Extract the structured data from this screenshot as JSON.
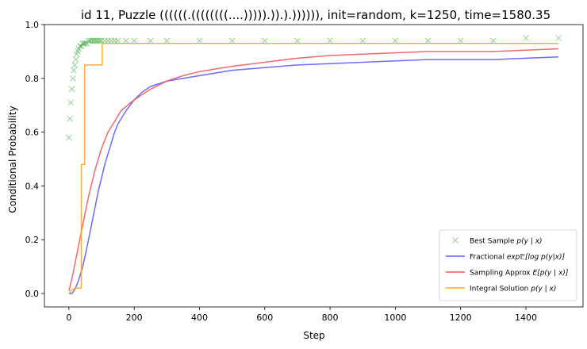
{
  "chart_data": {
    "type": "line",
    "title": "id 11, Puzzle ((((((.((((((((....))))).)).).)))))), init=random, k=1250, time=1580.35",
    "xlabel": "Step",
    "ylabel": "Conditional Probability",
    "xlim": [
      -75,
      1575
    ],
    "ylim": [
      -0.05,
      1.0
    ],
    "xticks": [
      0,
      200,
      400,
      600,
      800,
      1000,
      1200,
      1400
    ],
    "yticks": [
      0.0,
      0.2,
      0.4,
      0.6,
      0.8,
      1.0
    ],
    "xtick_labels": [
      "0",
      "200",
      "400",
      "600",
      "800",
      "1000",
      "1200",
      "1400"
    ],
    "ytick_labels": [
      "0.0",
      "0.2",
      "0.4",
      "0.6",
      "0.8",
      "1.0"
    ],
    "grid": false,
    "legend_position": "lower-right",
    "series": [
      {
        "name": "Best Sample p(y | x)",
        "legend_text": "Best Sample ",
        "legend_math": "p(y | x)",
        "color": "#2ca02c",
        "marker": "x",
        "x": [
          0,
          3,
          6,
          9,
          12,
          15,
          18,
          21,
          24,
          27,
          30,
          34,
          38,
          42,
          46,
          50,
          55,
          60,
          65,
          70,
          75,
          80,
          85,
          90,
          95,
          100,
          110,
          120,
          130,
          140,
          150,
          175,
          200,
          250,
          300,
          400,
          500,
          600,
          700,
          800,
          900,
          1000,
          1100,
          1200,
          1300,
          1400,
          1500
        ],
        "y": [
          0.58,
          0.65,
          0.71,
          0.76,
          0.8,
          0.83,
          0.85,
          0.87,
          0.89,
          0.9,
          0.91,
          0.92,
          0.92,
          0.93,
          0.93,
          0.93,
          0.93,
          0.94,
          0.94,
          0.94,
          0.94,
          0.94,
          0.94,
          0.94,
          0.94,
          0.94,
          0.94,
          0.94,
          0.94,
          0.94,
          0.94,
          0.94,
          0.94,
          0.94,
          0.94,
          0.94,
          0.94,
          0.94,
          0.94,
          0.94,
          0.94,
          0.94,
          0.94,
          0.94,
          0.94,
          0.95,
          0.95
        ]
      },
      {
        "name": "Fractional exp E[log p(y|x)]",
        "legend_text": "Fractional ",
        "legend_math": "exp𝔼[log p(y|x)]",
        "color": "#5b5bff",
        "x": [
          0,
          10,
          20,
          30,
          40,
          50,
          60,
          70,
          80,
          90,
          100,
          110,
          120,
          130,
          140,
          150,
          175,
          200,
          225,
          250,
          300,
          350,
          400,
          450,
          500,
          600,
          700,
          800,
          900,
          1000,
          1100,
          1200,
          1300,
          1400,
          1500
        ],
        "y": [
          0.0,
          0.0,
          0.02,
          0.05,
          0.09,
          0.14,
          0.2,
          0.26,
          0.32,
          0.38,
          0.43,
          0.48,
          0.52,
          0.56,
          0.6,
          0.63,
          0.68,
          0.72,
          0.75,
          0.77,
          0.79,
          0.8,
          0.81,
          0.82,
          0.83,
          0.84,
          0.85,
          0.855,
          0.86,
          0.865,
          0.87,
          0.87,
          0.87,
          0.875,
          0.88
        ]
      },
      {
        "name": "Sampling Approx E[p(y | x)]",
        "legend_text": "Sampling Approx ",
        "legend_math": "E[p(y | x)]",
        "color": "#f05a5a",
        "x": [
          0,
          10,
          20,
          30,
          40,
          50,
          60,
          70,
          80,
          90,
          100,
          120,
          140,
          160,
          180,
          200,
          250,
          300,
          350,
          400,
          500,
          600,
          700,
          800,
          900,
          1000,
          1100,
          1200,
          1300,
          1400,
          1500
        ],
        "y": [
          0.01,
          0.06,
          0.12,
          0.18,
          0.24,
          0.3,
          0.36,
          0.41,
          0.46,
          0.5,
          0.54,
          0.6,
          0.64,
          0.68,
          0.7,
          0.72,
          0.76,
          0.79,
          0.81,
          0.825,
          0.845,
          0.86,
          0.875,
          0.885,
          0.89,
          0.895,
          0.9,
          0.9,
          0.9,
          0.905,
          0.91
        ]
      },
      {
        "name": "Integral Solution p(y | x)",
        "legend_text": "Integral Solution ",
        "legend_math": "p(y | x)",
        "color": "#ffa62b",
        "x": [
          0,
          10,
          20,
          30,
          38,
          38,
          48,
          48,
          102,
          102,
          1500
        ],
        "y": [
          0.0,
          0.015,
          0.02,
          0.02,
          0.02,
          0.48,
          0.48,
          0.85,
          0.85,
          0.93,
          0.93
        ]
      }
    ]
  }
}
